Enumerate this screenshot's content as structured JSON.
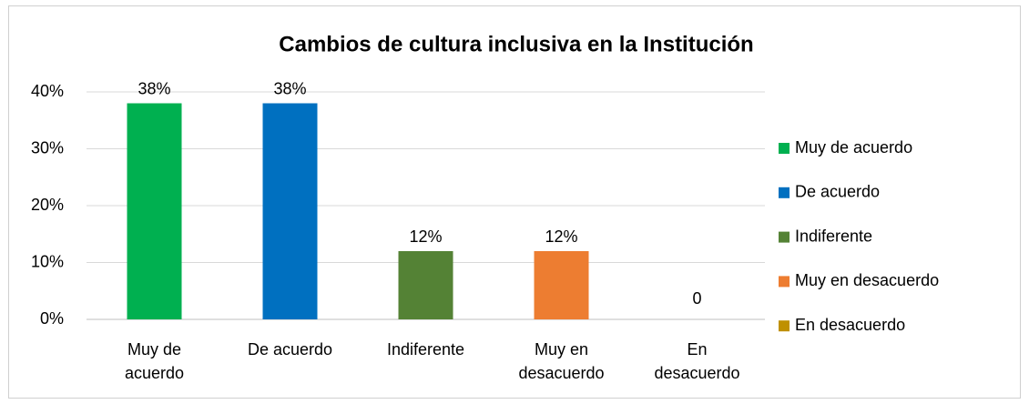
{
  "chart_data": {
    "type": "bar",
    "title": "Cambios de cultura inclusiva en la Institución",
    "categories": [
      "Muy de acuerdo",
      "De acuerdo",
      "Indiferente",
      "Muy en desacuerdo",
      "En desacuerdo"
    ],
    "values": [
      38,
      38,
      12,
      12,
      0
    ],
    "value_labels": [
      "38%",
      "38%",
      "12%",
      "12%",
      "0"
    ],
    "colors": [
      "#00b050",
      "#0070c0",
      "#548235",
      "#ed7d31",
      "#bf9000"
    ],
    "ylim": [
      0,
      40
    ],
    "yticks": [
      {
        "value": 0,
        "label": "0%"
      },
      {
        "value": 10,
        "label": "10%"
      },
      {
        "value": 20,
        "label": "20%"
      },
      {
        "value": 30,
        "label": "30%"
      },
      {
        "value": 40,
        "label": "40%"
      }
    ],
    "grid": true,
    "legend": "right"
  }
}
